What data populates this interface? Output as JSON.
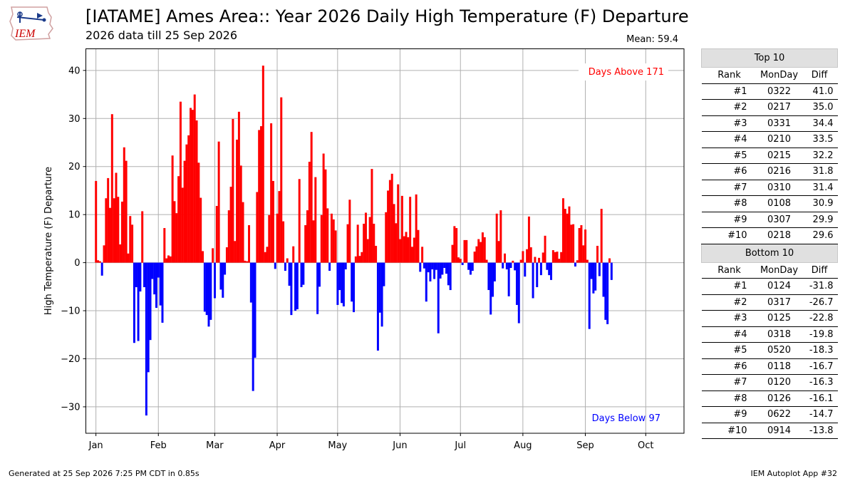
{
  "header": {
    "logo_text": "IEM",
    "title": "[IATAME] Ames Area:: Year 2026 Daily High Temperature (F) Departure",
    "subtitle": "2026 data till 25 Sep 2026"
  },
  "footer": {
    "generated": "Generated at 25 Sep 2026 7:25 PM CDT in 0.85s",
    "app": "IEM Autoplot App #32"
  },
  "colors": {
    "above": "#ff0000",
    "below": "#0000ff",
    "grid": "#b0b0b0"
  },
  "chart_data": {
    "type": "bar",
    "title": "[IATAME] Ames Area:: Year 2026 Daily High Temperature (F) Departure",
    "subtitle": "2026 data till 25 Sep 2026",
    "ylabel": "High Temperature (F) Departure",
    "mean_label": "Mean: 59.4",
    "ylim": [
      -35.5,
      44.5
    ],
    "xlim_days": [
      -5,
      292
    ],
    "yticks": [
      -30,
      -20,
      -10,
      0,
      10,
      20,
      30,
      40
    ],
    "ytick_labels": [
      "−30",
      "−20",
      "−10",
      "0",
      "10",
      "20",
      "30",
      "40"
    ],
    "xticks": [
      {
        "label": "Jan",
        "day": 0
      },
      {
        "label": "Feb",
        "day": 31
      },
      {
        "label": "Mar",
        "day": 59
      },
      {
        "label": "Apr",
        "day": 90
      },
      {
        "label": "May",
        "day": 120
      },
      {
        "label": "Jun",
        "day": 151
      },
      {
        "label": "Jul",
        "day": 181
      },
      {
        "label": "Aug",
        "day": 212
      },
      {
        "label": "Sep",
        "day": 243
      },
      {
        "label": "Oct",
        "day": 273
      }
    ],
    "annotations": {
      "above_text": "Days Above 171",
      "below_text": "Days Below 97"
    },
    "grid": true,
    "x_start_date": "2026-01-01",
    "values": [
      17.0,
      0.5,
      0.3,
      -2.7,
      3.6,
      13.4,
      17.6,
      11.4,
      30.9,
      13.4,
      18.7,
      13.7,
      3.8,
      12.7,
      24.0,
      21.2,
      1.9,
      9.7,
      7.9,
      -16.7,
      -5.1,
      -16.3,
      -6.0,
      10.7,
      -5.1,
      -31.8,
      -22.8,
      -16.1,
      -3.4,
      -6.6,
      -9.4,
      -3.1,
      -8.9,
      -12.5,
      7.2,
      0.9,
      1.5,
      1.3,
      22.3,
      12.8,
      10.3,
      18.0,
      33.5,
      15.6,
      21.2,
      24.6,
      26.5,
      32.2,
      31.8,
      35.0,
      29.6,
      20.8,
      13.5,
      2.4,
      -10.2,
      -10.9,
      -13.3,
      -11.9,
      3.0,
      -7.4,
      11.8,
      25.2,
      -5.6,
      -7.3,
      -2.5,
      3.2,
      10.9,
      15.8,
      29.9,
      4.5,
      25.6,
      31.4,
      20.2,
      12.6,
      0.4,
      0.3,
      7.8,
      -8.3,
      -26.7,
      -19.8,
      14.7,
      27.6,
      28.4,
      41.0,
      2.2,
      3.3,
      9.9,
      29.0,
      17.0,
      -1.3,
      10.2,
      14.9,
      34.4,
      8.6,
      -1.7,
      0.9,
      -4.8,
      -10.9,
      3.4,
      -10.0,
      -9.7,
      17.4,
      -5.1,
      -4.6,
      7.8,
      10.9,
      21.0,
      27.2,
      8.8,
      17.8,
      -10.7,
      -5.0,
      9.9,
      22.7,
      19.4,
      11.3,
      -1.7,
      10.2,
      9.0,
      6.7,
      -8.8,
      -5.7,
      -8.4,
      -9.1,
      -1.4,
      8.0,
      13.1,
      -8.1,
      -10.3,
      1.3,
      7.9,
      1.4,
      2.2,
      8.1,
      10.4,
      4.9,
      9.5,
      19.5,
      8.1,
      3.5,
      -18.3,
      -10.4,
      -13.3,
      -4.9,
      10.5,
      15.0,
      17.2,
      18.5,
      12.2,
      8.2,
      16.3,
      4.9,
      13.9,
      5.5,
      6.4,
      5.3,
      13.7,
      3.3,
      5.2,
      14.2,
      6.8,
      -1.9,
      3.3,
      -1.2,
      -8.1,
      -2.0,
      -3.9,
      -1.4,
      -3.4,
      -1.5,
      -14.7,
      -3.3,
      -2.5,
      -1.1,
      -2.3,
      -4.7,
      -5.7,
      3.7,
      7.6,
      7.2,
      1.1,
      0.8,
      -0.5,
      4.7,
      4.7,
      -1.5,
      -2.5,
      -1.7,
      2.3,
      3.4,
      4.9,
      4.3,
      6.3,
      5.3,
      0.6,
      -5.7,
      -10.8,
      -7.1,
      -3.9,
      10.2,
      4.5,
      10.9,
      -1.2,
      1.9,
      -1.4,
      -7.0,
      -1.1,
      0.4,
      -1.6,
      -8.8,
      -12.6,
      0.6,
      2.4,
      -2.9,
      2.8,
      9.6,
      3.2,
      -7.4,
      1.2,
      -5.1,
      1.0,
      -2.6,
      2.1,
      5.6,
      -1.5,
      -2.6,
      -3.6,
      2.6,
      2.2,
      2.3,
      0.8,
      2.2,
      13.4,
      11.2,
      10.2,
      11.7,
      7.9,
      8.0,
      -0.8,
      0.5,
      7.2,
      7.8,
      3.6,
      6.9,
      0.6,
      -13.8,
      -3.4,
      -6.4,
      -5.8,
      3.5,
      -2.8,
      11.2,
      -7.1,
      -11.9,
      -12.8,
      0.9,
      -3.6
    ]
  },
  "rank_table": {
    "top_header": "Top 10",
    "bottom_header": "Bottom 10",
    "columns": [
      "Rank",
      "MonDay",
      "Diff"
    ],
    "top": [
      {
        "rank": "#1",
        "monday": "0322",
        "diff": "41.0"
      },
      {
        "rank": "#2",
        "monday": "0217",
        "diff": "35.0"
      },
      {
        "rank": "#3",
        "monday": "0331",
        "diff": "34.4"
      },
      {
        "rank": "#4",
        "monday": "0210",
        "diff": "33.5"
      },
      {
        "rank": "#5",
        "monday": "0215",
        "diff": "32.2"
      },
      {
        "rank": "#6",
        "monday": "0216",
        "diff": "31.8"
      },
      {
        "rank": "#7",
        "monday": "0310",
        "diff": "31.4"
      },
      {
        "rank": "#8",
        "monday": "0108",
        "diff": "30.9"
      },
      {
        "rank": "#9",
        "monday": "0307",
        "diff": "29.9"
      },
      {
        "rank": "#10",
        "monday": "0218",
        "diff": "29.6"
      }
    ],
    "bottom": [
      {
        "rank": "#1",
        "monday": "0124",
        "diff": "-31.8"
      },
      {
        "rank": "#2",
        "monday": "0317",
        "diff": "-26.7"
      },
      {
        "rank": "#3",
        "monday": "0125",
        "diff": "-22.8"
      },
      {
        "rank": "#4",
        "monday": "0318",
        "diff": "-19.8"
      },
      {
        "rank": "#5",
        "monday": "0520",
        "diff": "-18.3"
      },
      {
        "rank": "#6",
        "monday": "0118",
        "diff": "-16.7"
      },
      {
        "rank": "#7",
        "monday": "0120",
        "diff": "-16.3"
      },
      {
        "rank": "#8",
        "monday": "0126",
        "diff": "-16.1"
      },
      {
        "rank": "#9",
        "monday": "0622",
        "diff": "-14.7"
      },
      {
        "rank": "#10",
        "monday": "0914",
        "diff": "-13.8"
      }
    ]
  }
}
